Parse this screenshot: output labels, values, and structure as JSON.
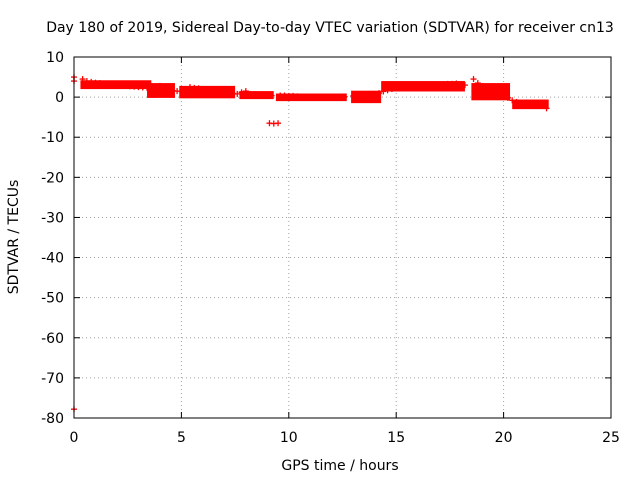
{
  "chart_data": {
    "type": "scatter",
    "title": "Day 180 of 2019, Sidereal Day-to-day VTEC variation (SDTVAR) for receiver cn13",
    "xlabel": "GPS time / hours",
    "ylabel": "SDTVAR / TECUs",
    "xlim": [
      0,
      25
    ],
    "ylim": [
      -80,
      10
    ],
    "xticks": [
      0,
      5,
      10,
      15,
      20,
      25
    ],
    "yticks": [
      10,
      0,
      -10,
      -20,
      -30,
      -40,
      -50,
      -60,
      -70,
      -80
    ],
    "grid": true,
    "marker": "+",
    "color": "#ff0000",
    "series": [
      {
        "name": "SDTVAR",
        "points": [
          [
            0.0,
            5.0
          ],
          [
            0.0,
            4.0
          ],
          [
            0.0,
            -77.8
          ],
          [
            0.4,
            4.5
          ],
          [
            0.6,
            4.0
          ],
          [
            0.8,
            3.8
          ],
          [
            1.0,
            3.6
          ],
          [
            1.2,
            3.5
          ],
          [
            1.4,
            3.4
          ],
          [
            1.6,
            3.3
          ],
          [
            1.8,
            3.2
          ],
          [
            2.0,
            3.0
          ],
          [
            2.2,
            2.9
          ],
          [
            2.4,
            2.8
          ],
          [
            2.6,
            2.7
          ],
          [
            2.8,
            2.6
          ],
          [
            3.0,
            2.5
          ],
          [
            3.2,
            2.4
          ],
          [
            3.4,
            2.3
          ],
          [
            3.6,
            2.5
          ],
          [
            3.8,
            2.6
          ],
          [
            4.0,
            2.8
          ],
          [
            4.2,
            2.2
          ],
          [
            4.4,
            1.8
          ],
          [
            4.6,
            1.6
          ],
          [
            4.8,
            1.5
          ],
          [
            5.0,
            1.4
          ],
          [
            5.2,
            1.5
          ],
          [
            5.4,
            2.5
          ],
          [
            5.6,
            2.3
          ],
          [
            5.8,
            2.2
          ],
          [
            6.0,
            2.0
          ],
          [
            6.2,
            1.8
          ],
          [
            6.4,
            1.6
          ],
          [
            6.6,
            1.4
          ],
          [
            6.8,
            1.3
          ],
          [
            7.0,
            1.2
          ],
          [
            7.2,
            1.0
          ],
          [
            7.4,
            0.9
          ],
          [
            7.6,
            0.8
          ],
          [
            7.8,
            1.2
          ],
          [
            8.0,
            1.5
          ],
          [
            8.2,
            0.8
          ],
          [
            8.4,
            0.7
          ],
          [
            8.6,
            0.6
          ],
          [
            8.8,
            0.5
          ],
          [
            9.0,
            0.5
          ],
          [
            9.2,
            0.4
          ],
          [
            9.1,
            -6.5
          ],
          [
            9.3,
            -6.6
          ],
          [
            9.5,
            -6.5
          ],
          [
            9.6,
            0.4
          ],
          [
            9.8,
            0.4
          ],
          [
            10.0,
            0.3
          ],
          [
            10.2,
            0.3
          ],
          [
            10.4,
            0.2
          ],
          [
            10.6,
            0.1
          ],
          [
            10.8,
            0.0
          ],
          [
            11.0,
            0.0
          ],
          [
            11.2,
            -0.1
          ],
          [
            11.4,
            -0.1
          ],
          [
            11.6,
            -0.1
          ],
          [
            11.8,
            0.0
          ],
          [
            12.0,
            0.0
          ],
          [
            12.2,
            0.0
          ],
          [
            12.4,
            0.0
          ],
          [
            12.6,
            0.1
          ],
          [
            13.0,
            0.3
          ],
          [
            13.2,
            0.1
          ],
          [
            13.4,
            0.0
          ],
          [
            13.6,
            0.2
          ],
          [
            13.8,
            0.5
          ],
          [
            14.0,
            0.8
          ],
          [
            14.2,
            1.0
          ],
          [
            14.4,
            1.4
          ],
          [
            14.6,
            1.7
          ],
          [
            14.8,
            2.0
          ],
          [
            15.0,
            2.2
          ],
          [
            15.2,
            2.4
          ],
          [
            15.4,
            2.5
          ],
          [
            15.6,
            2.6
          ],
          [
            15.8,
            2.7
          ],
          [
            16.0,
            2.8
          ],
          [
            16.2,
            2.9
          ],
          [
            16.4,
            3.0
          ],
          [
            16.6,
            3.1
          ],
          [
            16.8,
            3.1
          ],
          [
            17.0,
            3.2
          ],
          [
            17.2,
            3.2
          ],
          [
            17.4,
            3.3
          ],
          [
            17.6,
            3.3
          ],
          [
            17.8,
            3.4
          ],
          [
            18.0,
            3.2
          ],
          [
            18.2,
            3.0
          ],
          [
            18.6,
            4.5
          ],
          [
            18.8,
            3.5
          ],
          [
            19.0,
            2.5
          ],
          [
            19.2,
            1.5
          ],
          [
            19.4,
            1.0
          ],
          [
            19.6,
            0.6
          ],
          [
            19.8,
            0.4
          ],
          [
            20.0,
            0.1
          ],
          [
            20.2,
            -0.2
          ],
          [
            20.4,
            -0.8
          ],
          [
            20.6,
            -1.2
          ],
          [
            20.8,
            -1.6
          ],
          [
            21.0,
            -1.8
          ],
          [
            21.2,
            -1.9
          ],
          [
            21.4,
            -2.0
          ],
          [
            21.6,
            -2.1
          ],
          [
            21.8,
            -2.2
          ],
          [
            22.0,
            -2.8
          ]
        ],
        "bands": [
          {
            "x0": 0.3,
            "x1": 3.6,
            "y0": 4.2,
            "y1": 2.0
          },
          {
            "x0": 3.4,
            "x1": 4.7,
            "y0": 3.5,
            "y1": -0.2
          },
          {
            "x0": 4.9,
            "x1": 7.5,
            "y0": 2.8,
            "y1": -0.3
          },
          {
            "x0": 7.7,
            "x1": 9.3,
            "y0": 1.5,
            "y1": -0.5
          },
          {
            "x0": 9.4,
            "x1": 12.7,
            "y0": 0.9,
            "y1": -1.0
          },
          {
            "x0": 12.9,
            "x1": 14.3,
            "y0": 1.6,
            "y1": -1.5
          },
          {
            "x0": 14.3,
            "x1": 18.2,
            "y0": 4.0,
            "y1": 1.4
          },
          {
            "x0": 18.5,
            "x1": 20.3,
            "y0": 3.5,
            "y1": -0.8
          },
          {
            "x0": 20.4,
            "x1": 22.1,
            "y0": -0.6,
            "y1": -3.0
          }
        ]
      }
    ]
  }
}
